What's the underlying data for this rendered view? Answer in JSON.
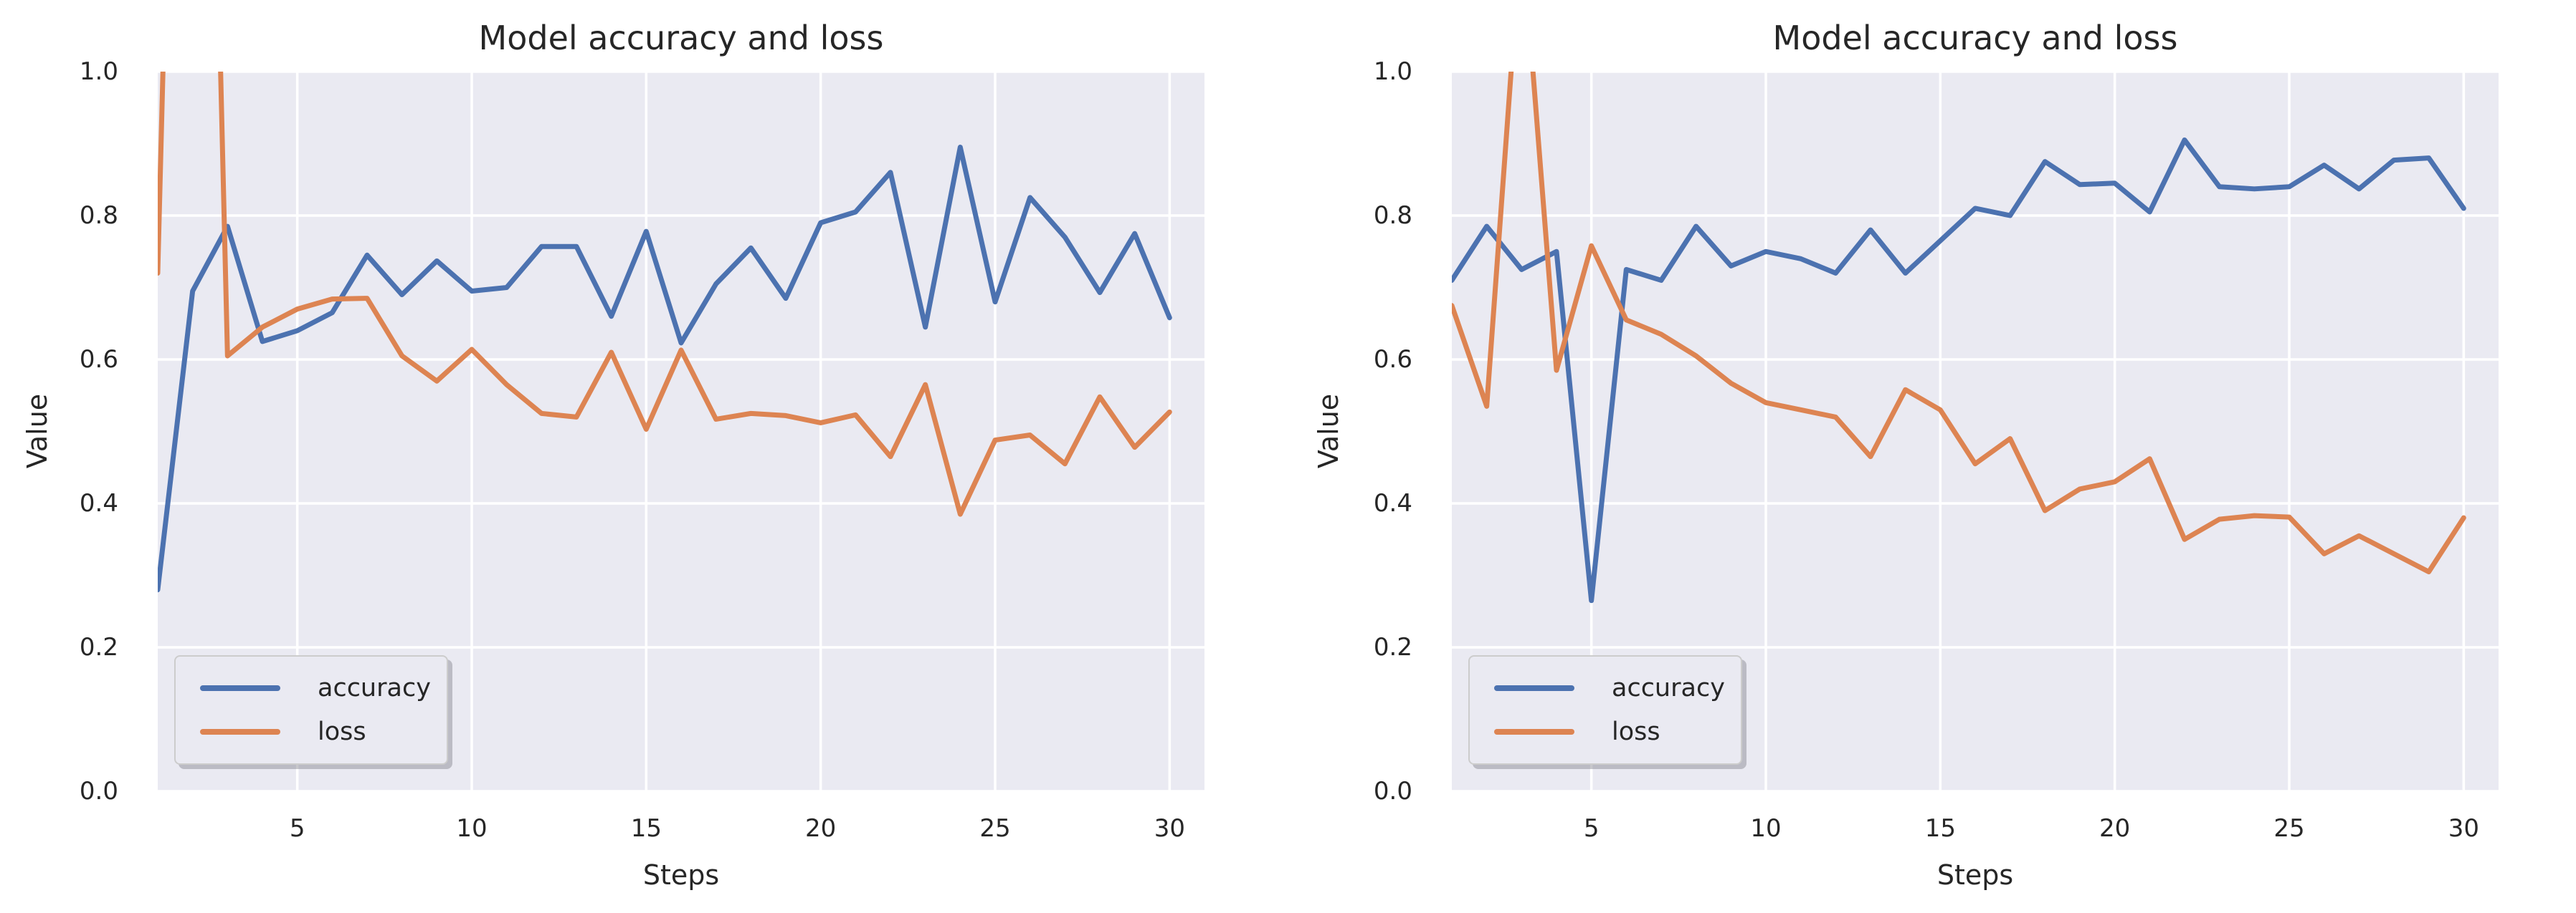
{
  "colors": {
    "accuracy": "#4C72B0",
    "loss": "#DD8452",
    "plot_background": "#EAEAF2",
    "gridline": "#FFFFFF",
    "text": "#262626"
  },
  "chart_data": [
    {
      "type": "line",
      "title": "Model accuracy and loss",
      "xlabel": "Steps",
      "ylabel": "Value",
      "xlim": [
        1,
        31
      ],
      "ylim": [
        0,
        1
      ],
      "grid": true,
      "legend_position": "lower left",
      "xticks": [
        5,
        10,
        15,
        20,
        25,
        30
      ],
      "xtick_labels": [
        "5",
        "10",
        "15",
        "20",
        "25",
        "30"
      ],
      "yticks": [
        0,
        0.2,
        0.4,
        0.6,
        0.8,
        1
      ],
      "ytick_labels": [
        "0.0",
        "0.2",
        "0.4",
        "0.6",
        "0.8",
        "1.0"
      ],
      "x": [
        1,
        2,
        3,
        4,
        5,
        6,
        7,
        8,
        9,
        10,
        11,
        12,
        13,
        14,
        15,
        16,
        17,
        18,
        19,
        20,
        21,
        22,
        23,
        24,
        25,
        26,
        27,
        28,
        29,
        30
      ],
      "series": [
        {
          "name": "accuracy",
          "color": "#4C72B0",
          "values": [
            0.28,
            0.695,
            0.785,
            0.625,
            0.64,
            0.665,
            0.745,
            0.69,
            0.737,
            0.695,
            0.7,
            0.757,
            0.757,
            0.66,
            0.778,
            0.623,
            0.705,
            0.755,
            0.685,
            0.79,
            0.805,
            0.86,
            0.645,
            0.895,
            0.68,
            0.825,
            0.77,
            0.693,
            0.775,
            0.658
          ]
        },
        {
          "name": "loss",
          "color": "#DD8452",
          "values": [
            0.72,
            2.6,
            0.605,
            0.645,
            0.67,
            0.684,
            0.685,
            0.605,
            0.57,
            0.614,
            0.565,
            0.525,
            0.52,
            0.61,
            0.503,
            0.613,
            0.517,
            0.525,
            0.522,
            0.512,
            0.523,
            0.465,
            0.565,
            0.385,
            0.488,
            0.495,
            0.455,
            0.548,
            0.478,
            0.527
          ]
        }
      ]
    },
    {
      "type": "line",
      "title": "Model accuracy and loss",
      "xlabel": "Steps",
      "ylabel": "Value",
      "xlim": [
        1,
        31
      ],
      "ylim": [
        0,
        1
      ],
      "grid": true,
      "legend_position": "lower left",
      "xticks": [
        5,
        10,
        15,
        20,
        25,
        30
      ],
      "xtick_labels": [
        "5",
        "10",
        "15",
        "20",
        "25",
        "30"
      ],
      "yticks": [
        0,
        0.2,
        0.4,
        0.6,
        0.8,
        1
      ],
      "ytick_labels": [
        "0.0",
        "0.2",
        "0.4",
        "0.6",
        "0.8",
        "1.0"
      ],
      "x": [
        1,
        2,
        3,
        4,
        5,
        6,
        7,
        8,
        9,
        10,
        11,
        12,
        13,
        14,
        15,
        16,
        17,
        18,
        19,
        20,
        21,
        22,
        23,
        24,
        25,
        26,
        27,
        28,
        29,
        30
      ],
      "series": [
        {
          "name": "accuracy",
          "color": "#4C72B0",
          "values": [
            0.71,
            0.785,
            0.725,
            0.75,
            0.265,
            0.725,
            0.71,
            0.785,
            0.73,
            0.75,
            0.74,
            0.72,
            0.78,
            0.72,
            0.765,
            0.81,
            0.8,
            0.875,
            0.843,
            0.845,
            0.805,
            0.905,
            0.84,
            0.837,
            0.84,
            0.87,
            0.837,
            0.877,
            0.88,
            0.81
          ]
        },
        {
          "name": "loss",
          "color": "#DD8452",
          "values": [
            0.675,
            0.535,
            1.2,
            0.585,
            0.758,
            0.655,
            0.635,
            0.605,
            0.567,
            0.54,
            0.53,
            0.52,
            0.465,
            0.558,
            0.53,
            0.455,
            0.49,
            0.39,
            0.42,
            0.43,
            0.462,
            0.35,
            0.378,
            0.383,
            0.381,
            0.33,
            0.355,
            0.33,
            0.305,
            0.38
          ]
        }
      ]
    }
  ]
}
